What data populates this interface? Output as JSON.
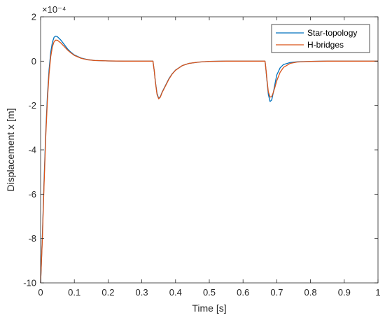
{
  "chart_data": {
    "type": "line",
    "title": "",
    "xlabel": "Time [s]",
    "ylabel": "Displacement x [m]",
    "y_exponent_label": "×10⁻⁴",
    "xlim": [
      0,
      1
    ],
    "ylim": [
      -10,
      2
    ],
    "xticks": [
      "0",
      "0.1",
      "0.2",
      "0.3",
      "0.4",
      "0.5",
      "0.6",
      "0.7",
      "0.8",
      "0.9",
      "1"
    ],
    "yticks": [
      "2",
      "0",
      "-2",
      "-4",
      "-6",
      "-8",
      "-10"
    ],
    "grid": false,
    "legend_position": "top-right",
    "series": [
      {
        "name": "Star-topology",
        "color": "#0072BD",
        "points": [
          [
            0.0,
            -10.0
          ],
          [
            0.005,
            -8.0
          ],
          [
            0.01,
            -5.5
          ],
          [
            0.015,
            -3.3
          ],
          [
            0.02,
            -1.6
          ],
          [
            0.025,
            -0.4
          ],
          [
            0.03,
            0.4
          ],
          [
            0.035,
            0.85
          ],
          [
            0.04,
            1.08
          ],
          [
            0.045,
            1.13
          ],
          [
            0.05,
            1.1
          ],
          [
            0.06,
            0.95
          ],
          [
            0.07,
            0.75
          ],
          [
            0.08,
            0.55
          ],
          [
            0.09,
            0.4
          ],
          [
            0.1,
            0.28
          ],
          [
            0.12,
            0.14
          ],
          [
            0.14,
            0.07
          ],
          [
            0.16,
            0.03
          ],
          [
            0.2,
            0.01
          ],
          [
            0.25,
            0.0
          ],
          [
            0.333,
            0.0
          ],
          [
            0.334,
            -0.12
          ],
          [
            0.337,
            -0.45
          ],
          [
            0.34,
            -0.9
          ],
          [
            0.345,
            -1.45
          ],
          [
            0.35,
            -1.68
          ],
          [
            0.355,
            -1.6
          ],
          [
            0.36,
            -1.4
          ],
          [
            0.37,
            -1.1
          ],
          [
            0.38,
            -0.8
          ],
          [
            0.39,
            -0.57
          ],
          [
            0.4,
            -0.4
          ],
          [
            0.42,
            -0.2
          ],
          [
            0.44,
            -0.1
          ],
          [
            0.47,
            -0.04
          ],
          [
            0.5,
            -0.01
          ],
          [
            0.55,
            0.0
          ],
          [
            0.665,
            0.0
          ],
          [
            0.666,
            -0.1
          ],
          [
            0.668,
            -0.4
          ],
          [
            0.671,
            -0.9
          ],
          [
            0.675,
            -1.5
          ],
          [
            0.68,
            -1.82
          ],
          [
            0.685,
            -1.75
          ],
          [
            0.69,
            -1.4
          ],
          [
            0.695,
            -1.0
          ],
          [
            0.7,
            -0.62
          ],
          [
            0.71,
            -0.3
          ],
          [
            0.72,
            -0.15
          ],
          [
            0.74,
            -0.06
          ],
          [
            0.76,
            -0.03
          ],
          [
            0.8,
            -0.01
          ],
          [
            0.85,
            0.0
          ],
          [
            1.0,
            0.0
          ]
        ]
      },
      {
        "name": "H-bridges",
        "color": "#D95319",
        "points": [
          [
            0.0,
            -10.0
          ],
          [
            0.005,
            -8.1
          ],
          [
            0.01,
            -5.7
          ],
          [
            0.015,
            -3.5
          ],
          [
            0.02,
            -1.8
          ],
          [
            0.025,
            -0.6
          ],
          [
            0.03,
            0.2
          ],
          [
            0.035,
            0.65
          ],
          [
            0.04,
            0.88
          ],
          [
            0.045,
            0.95
          ],
          [
            0.05,
            0.94
          ],
          [
            0.06,
            0.82
          ],
          [
            0.07,
            0.66
          ],
          [
            0.08,
            0.5
          ],
          [
            0.09,
            0.37
          ],
          [
            0.1,
            0.26
          ],
          [
            0.12,
            0.13
          ],
          [
            0.14,
            0.06
          ],
          [
            0.16,
            0.03
          ],
          [
            0.2,
            0.01
          ],
          [
            0.25,
            0.0
          ],
          [
            0.333,
            0.0
          ],
          [
            0.334,
            -0.12
          ],
          [
            0.337,
            -0.45
          ],
          [
            0.34,
            -0.92
          ],
          [
            0.345,
            -1.5
          ],
          [
            0.35,
            -1.7
          ],
          [
            0.355,
            -1.62
          ],
          [
            0.36,
            -1.42
          ],
          [
            0.37,
            -1.12
          ],
          [
            0.38,
            -0.82
          ],
          [
            0.39,
            -0.58
          ],
          [
            0.4,
            -0.41
          ],
          [
            0.42,
            -0.2
          ],
          [
            0.44,
            -0.1
          ],
          [
            0.47,
            -0.04
          ],
          [
            0.5,
            -0.01
          ],
          [
            0.55,
            0.0
          ],
          [
            0.665,
            0.0
          ],
          [
            0.666,
            -0.1
          ],
          [
            0.668,
            -0.38
          ],
          [
            0.671,
            -0.85
          ],
          [
            0.675,
            -1.38
          ],
          [
            0.68,
            -1.62
          ],
          [
            0.685,
            -1.6
          ],
          [
            0.69,
            -1.4
          ],
          [
            0.695,
            -1.15
          ],
          [
            0.7,
            -0.88
          ],
          [
            0.71,
            -0.5
          ],
          [
            0.72,
            -0.28
          ],
          [
            0.74,
            -0.1
          ],
          [
            0.76,
            -0.04
          ],
          [
            0.8,
            -0.01
          ],
          [
            0.85,
            0.0
          ],
          [
            1.0,
            0.0
          ]
        ]
      }
    ]
  }
}
